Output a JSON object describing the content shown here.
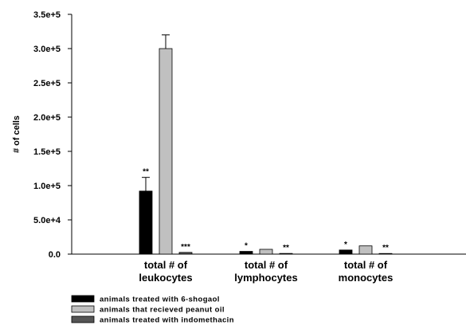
{
  "chart_data": {
    "type": "bar",
    "ylabel": "# of cells",
    "xlabel": "",
    "ylim": [
      0,
      350000
    ],
    "yticks": [
      0,
      50000,
      100000,
      150000,
      200000,
      250000,
      300000,
      350000
    ],
    "ytick_labels": [
      "0.0",
      "5.0e+4",
      "1.0e+5",
      "1.5e+5",
      "2.0e+5",
      "2.5e+5",
      "3.0e+5",
      "3.5e+5"
    ],
    "categories": [
      [
        "total # of",
        "leukocytes"
      ],
      [
        "total # of",
        "lymphocytes"
      ],
      [
        "total # of",
        "monocytes"
      ]
    ],
    "series": [
      {
        "name": "animals treated with 6-shogaol",
        "color": "#000000",
        "values": [
          92000,
          4000,
          6000
        ],
        "errors": [
          20000,
          0,
          0
        ],
        "significance": [
          "**",
          "*",
          "*"
        ]
      },
      {
        "name": "animals that recieved peanut oil",
        "color": "#c0c0c0",
        "values": [
          300000,
          7000,
          12000
        ],
        "errors": [
          20000,
          0,
          0
        ],
        "significance": [
          "",
          "",
          ""
        ]
      },
      {
        "name": "animals treated with indomethacin",
        "color": "#555555",
        "values": [
          2500,
          1000,
          500
        ],
        "errors": [
          0,
          0,
          0
        ],
        "significance": [
          "***",
          "**",
          "**"
        ]
      }
    ],
    "legend_position": "bottom-left",
    "grid": false
  }
}
